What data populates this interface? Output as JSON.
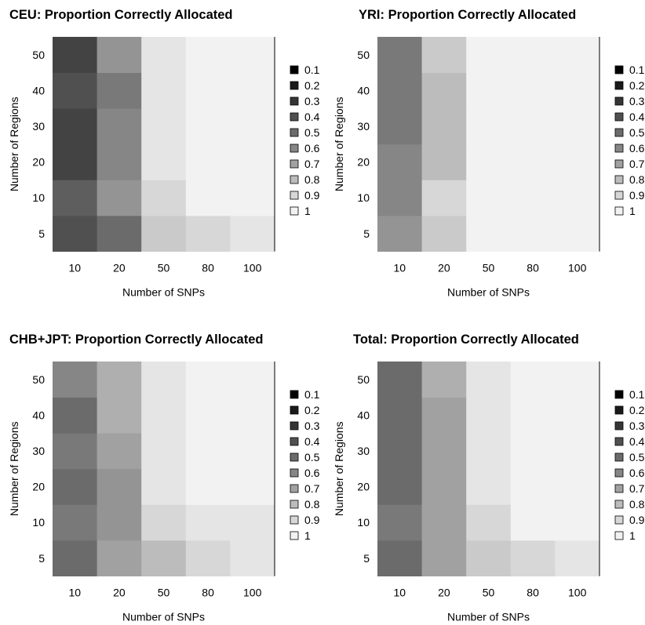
{
  "chart_data": [
    {
      "type": "heatmap",
      "title": "CEU: Proportion Correctly Allocated",
      "xlabel": "Number of SNPs",
      "ylabel": "Number of Regions",
      "x": [
        10,
        20,
        50,
        80,
        100
      ],
      "y": [
        5,
        10,
        20,
        30,
        40,
        50
      ],
      "x_ticks": [
        "10",
        "20",
        "50",
        "80",
        "100"
      ],
      "y_ticks": [
        "5",
        "10",
        "20",
        "30",
        "40",
        "50"
      ],
      "values": [
        [
          0.4,
          0.5,
          0.85,
          0.9,
          0.95
        ],
        [
          0.45,
          0.65,
          0.9,
          1,
          1
        ],
        [
          0.35,
          0.6,
          0.95,
          1,
          1
        ],
        [
          0.35,
          0.6,
          0.95,
          1,
          1
        ],
        [
          0.4,
          0.55,
          0.95,
          1,
          1
        ],
        [
          0.35,
          0.65,
          0.95,
          1,
          1
        ]
      ],
      "legend": [
        "0.1",
        "0.2",
        "0.3",
        "0.4",
        "0.5",
        "0.6",
        "0.7",
        "0.8",
        "0.9",
        "1"
      ],
      "legend_placement": "right"
    },
    {
      "type": "heatmap",
      "title": "YRI: Proportion Correctly Allocated",
      "xlabel": "Number of SNPs",
      "ylabel": "Number of Regions",
      "x": [
        10,
        20,
        50,
        80,
        100
      ],
      "y": [
        5,
        10,
        20,
        30,
        40,
        50
      ],
      "x_ticks": [
        "10",
        "20",
        "50",
        "80",
        "100"
      ],
      "y_ticks": [
        "5",
        "10",
        "20",
        "30",
        "40",
        "50"
      ],
      "values": [
        [
          0.65,
          0.85,
          1,
          1,
          1
        ],
        [
          0.6,
          0.9,
          1,
          1,
          1
        ],
        [
          0.6,
          0.8,
          1,
          1,
          1
        ],
        [
          0.55,
          0.8,
          1,
          1,
          1
        ],
        [
          0.55,
          0.8,
          1,
          1,
          1
        ],
        [
          0.55,
          0.85,
          1,
          1,
          1
        ]
      ],
      "legend": [
        "0.1",
        "0.2",
        "0.3",
        "0.4",
        "0.5",
        "0.6",
        "0.7",
        "0.8",
        "0.9",
        "1"
      ],
      "legend_placement": "right"
    },
    {
      "type": "heatmap",
      "title": "CHB+JPT: Proportion Correctly Allocated",
      "xlabel": "Number of SNPs",
      "ylabel": "Number of Regions",
      "x": [
        10,
        20,
        50,
        80,
        100
      ],
      "y": [
        5,
        10,
        20,
        30,
        40,
        50
      ],
      "x_ticks": [
        "10",
        "20",
        "50",
        "80",
        "100"
      ],
      "y_ticks": [
        "5",
        "10",
        "20",
        "30",
        "40",
        "50"
      ],
      "values": [
        [
          0.5,
          0.7,
          0.8,
          0.9,
          0.95
        ],
        [
          0.55,
          0.65,
          0.9,
          0.95,
          0.95
        ],
        [
          0.5,
          0.65,
          0.95,
          1,
          1
        ],
        [
          0.55,
          0.7,
          0.95,
          1,
          1
        ],
        [
          0.5,
          0.75,
          0.95,
          1,
          1
        ],
        [
          0.6,
          0.75,
          0.95,
          1,
          1
        ]
      ],
      "legend": [
        "0.1",
        "0.2",
        "0.3",
        "0.4",
        "0.5",
        "0.6",
        "0.7",
        "0.8",
        "0.9",
        "1"
      ],
      "legend_placement": "right"
    },
    {
      "type": "heatmap",
      "title": "Total: Proportion Correctly Allocated",
      "xlabel": "Number of SNPs",
      "ylabel": "Number of Regions",
      "x": [
        10,
        20,
        50,
        80,
        100
      ],
      "y": [
        5,
        10,
        20,
        30,
        40,
        50
      ],
      "x_ticks": [
        "10",
        "20",
        "50",
        "80",
        "100"
      ],
      "y_ticks": [
        "5",
        "10",
        "20",
        "30",
        "40",
        "50"
      ],
      "values": [
        [
          0.5,
          0.7,
          0.85,
          0.9,
          0.95
        ],
        [
          0.55,
          0.7,
          0.9,
          1,
          1
        ],
        [
          0.5,
          0.7,
          0.95,
          1,
          1
        ],
        [
          0.5,
          0.7,
          0.95,
          1,
          1
        ],
        [
          0.5,
          0.7,
          0.95,
          1,
          1
        ],
        [
          0.5,
          0.75,
          0.95,
          1,
          1
        ]
      ],
      "legend": [
        "0.1",
        "0.2",
        "0.3",
        "0.4",
        "0.5",
        "0.6",
        "0.7",
        "0.8",
        "0.9",
        "1"
      ],
      "legend_placement": "right"
    }
  ]
}
